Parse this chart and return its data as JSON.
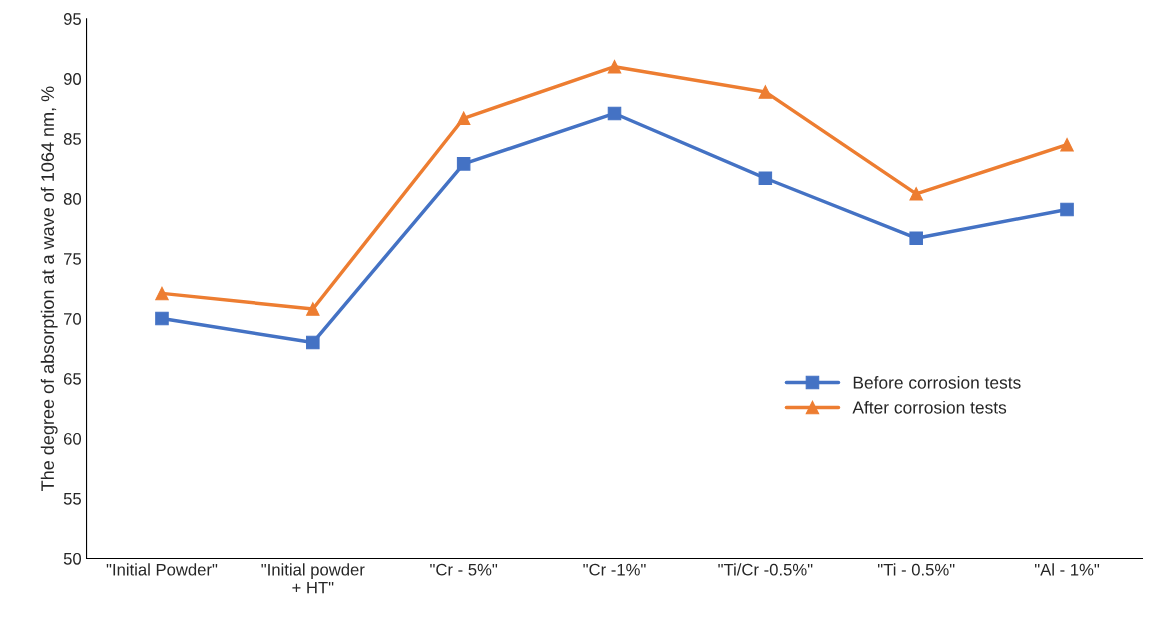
{
  "chart_data": {
    "type": "line",
    "ylabel": "The degree of absorption at a wave of 1064 nm, %",
    "categories": [
      "\"Initial Powder\"",
      "\"Initial powder\n+ HT\"",
      "\"Cr - 5%\"",
      "\"Cr -1%\"",
      "\"Ti/Cr -0.5%\"",
      "\"Ti - 0.5%\"",
      "\"Al - 1%\""
    ],
    "series": [
      {
        "name": "Before corrosion tests",
        "color": "#4472c4",
        "marker": "square",
        "values": [
          70,
          68,
          82.9,
          87.1,
          81.7,
          76.7,
          79.1
        ]
      },
      {
        "name": "After corrosion tests",
        "color": "#ed7d31",
        "marker": "triangle",
        "values": [
          72.1,
          70.8,
          86.7,
          91,
          88.9,
          80.4,
          84.5
        ]
      }
    ],
    "ylim": [
      50,
      95
    ],
    "yticks": [
      50,
      55,
      60,
      65,
      70,
      75,
      80,
      85,
      90,
      95
    ],
    "grid": false,
    "legend": "right"
  }
}
